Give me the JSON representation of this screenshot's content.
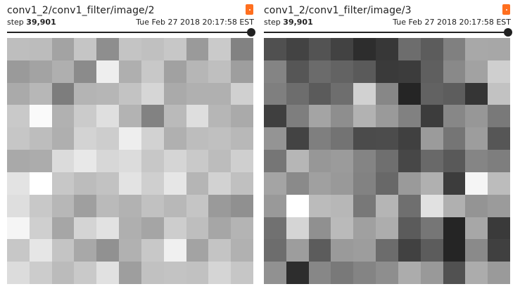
{
  "panels": [
    {
      "title": "conv1_2/conv1_filter/image/2",
      "step_label": "step",
      "step_value": "39,901",
      "timestamp": "Tue Feb 27 2018 20:17:58 EST",
      "slider_value": 1.0,
      "pixels": [
        [
          190,
          188,
          163,
          197,
          142,
          196,
          192,
          199,
          154,
          202,
          130
        ],
        [
          154,
          163,
          175,
          139,
          238,
          175,
          200,
          161,
          182,
          191,
          158
        ],
        [
          170,
          183,
          125,
          180,
          182,
          195,
          214,
          170,
          176,
          176,
          208
        ],
        [
          201,
          250,
          177,
          203,
          223,
          179,
          130,
          186,
          222,
          182,
          170
        ],
        [
          198,
          189,
          175,
          211,
          205,
          238,
          210,
          176,
          189,
          192,
          184
        ],
        [
          169,
          172,
          219,
          232,
          215,
          220,
          199,
          213,
          201,
          188,
          207
        ],
        [
          227,
          255,
          199,
          188,
          194,
          227,
          207,
          230,
          181,
          210,
          192
        ],
        [
          222,
          200,
          183,
          159,
          186,
          178,
          193,
          184,
          197,
          154,
          144
        ],
        [
          245,
          207,
          166,
          212,
          226,
          175,
          165,
          205,
          190,
          166,
          180
        ],
        [
          199,
          230,
          196,
          168,
          145,
          177,
          200,
          240,
          163,
          196,
          177
        ],
        [
          220,
          204,
          187,
          201,
          225,
          158,
          193,
          195,
          193,
          213,
          198
        ]
      ]
    },
    {
      "title": "conv1_2/conv1_filter/image/3",
      "step_label": "step",
      "step_value": "39,901",
      "timestamp": "Tue Feb 27 2018 20:17:58 EST",
      "slider_value": 1.0,
      "pixels": [
        [
          80,
          67,
          83,
          66,
          45,
          55,
          109,
          92,
          128,
          168,
          167
        ],
        [
          132,
          86,
          107,
          99,
          90,
          58,
          60,
          95,
          137,
          162,
          207
        ],
        [
          127,
          109,
          91,
          110,
          209,
          135,
          37,
          98,
          93,
          53,
          194
        ],
        [
          63,
          126,
          164,
          142,
          178,
          154,
          129,
          60,
          135,
          151,
          121
        ],
        [
          148,
          67,
          127,
          115,
          75,
          76,
          64,
          155,
          117,
          157,
          86
        ],
        [
          118,
          182,
          151,
          155,
          132,
          111,
          71,
          105,
          89,
          133,
          126
        ],
        [
          164,
          138,
          160,
          153,
          130,
          104,
          154,
          176,
          60,
          245,
          188
        ],
        [
          153,
          255,
          187,
          183,
          120,
          181,
          111,
          225,
          176,
          148,
          155
        ],
        [
          113,
          213,
          144,
          186,
          160,
          173,
          91,
          118,
          37,
          167,
          58
        ],
        [
          109,
          157,
          92,
          154,
          157,
          108,
          65,
          92,
          37,
          138,
          64
        ],
        [
          145,
          45,
          135,
          121,
          132,
          142,
          172,
          153,
          81,
          172,
          154
        ]
      ]
    }
  ]
}
